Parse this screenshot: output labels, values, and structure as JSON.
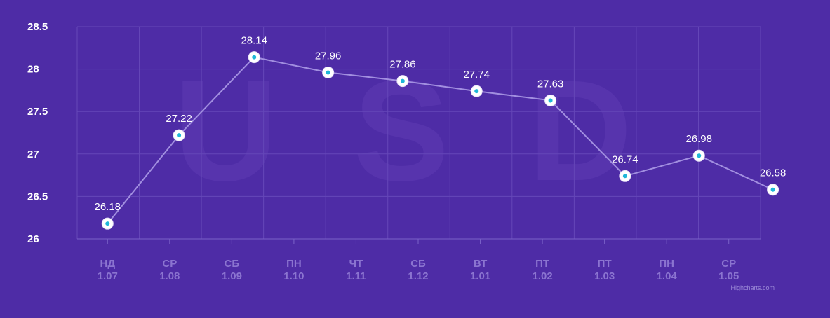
{
  "chart_data": {
    "type": "line",
    "title": "",
    "xlabel": "",
    "ylabel": "",
    "watermark_letters": [
      "U",
      "S",
      "D"
    ],
    "categories": [
      [
        "НД",
        "1.07"
      ],
      [
        "СР",
        "1.08"
      ],
      [
        "СБ",
        "1.09"
      ],
      [
        "ПН",
        "1.10"
      ],
      [
        "ЧТ",
        "1.11"
      ],
      [
        "СБ",
        "1.12"
      ],
      [
        "ВТ",
        "1.01"
      ],
      [
        "ПТ",
        "1.02"
      ],
      [
        "ПТ",
        "1.03"
      ],
      [
        "ПН",
        "1.04"
      ],
      [
        "СР",
        "1.05"
      ]
    ],
    "y_ticks": [
      "26",
      "26.5",
      "27",
      "27.5",
      "28",
      "28.5"
    ],
    "ylim": [
      26,
      28.5
    ],
    "series": [
      {
        "points": [
          {
            "x_index": 0,
            "y": 26.18,
            "label": "26.18"
          },
          {
            "x_index": 1.15,
            "y": 27.22,
            "label": "27.22"
          },
          {
            "x_index": 2.36,
            "y": 28.14,
            "label": "28.14"
          },
          {
            "x_index": 3.55,
            "y": 27.96,
            "label": "27.96"
          },
          {
            "x_index": 4.75,
            "y": 27.86,
            "label": "27.86"
          },
          {
            "x_index": 5.94,
            "y": 27.74,
            "label": "27.74"
          },
          {
            "x_index": 7.13,
            "y": 27.63,
            "label": "27.63"
          },
          {
            "x_index": 8.33,
            "y": 26.74,
            "label": "26.74"
          },
          {
            "x_index": 9.52,
            "y": 26.98,
            "label": "26.98"
          },
          {
            "x_index": 10.71,
            "y": 26.58,
            "label": "26.58"
          }
        ]
      }
    ],
    "grid": true,
    "colors": {
      "background": "#4e2ca6",
      "grid": "#6547b8",
      "line": "#a28fe0",
      "marker_fill": "#ffffff",
      "marker_center": "#1fb7d8",
      "watermark": "#5734ad"
    },
    "credit": "Highcharts.com"
  }
}
